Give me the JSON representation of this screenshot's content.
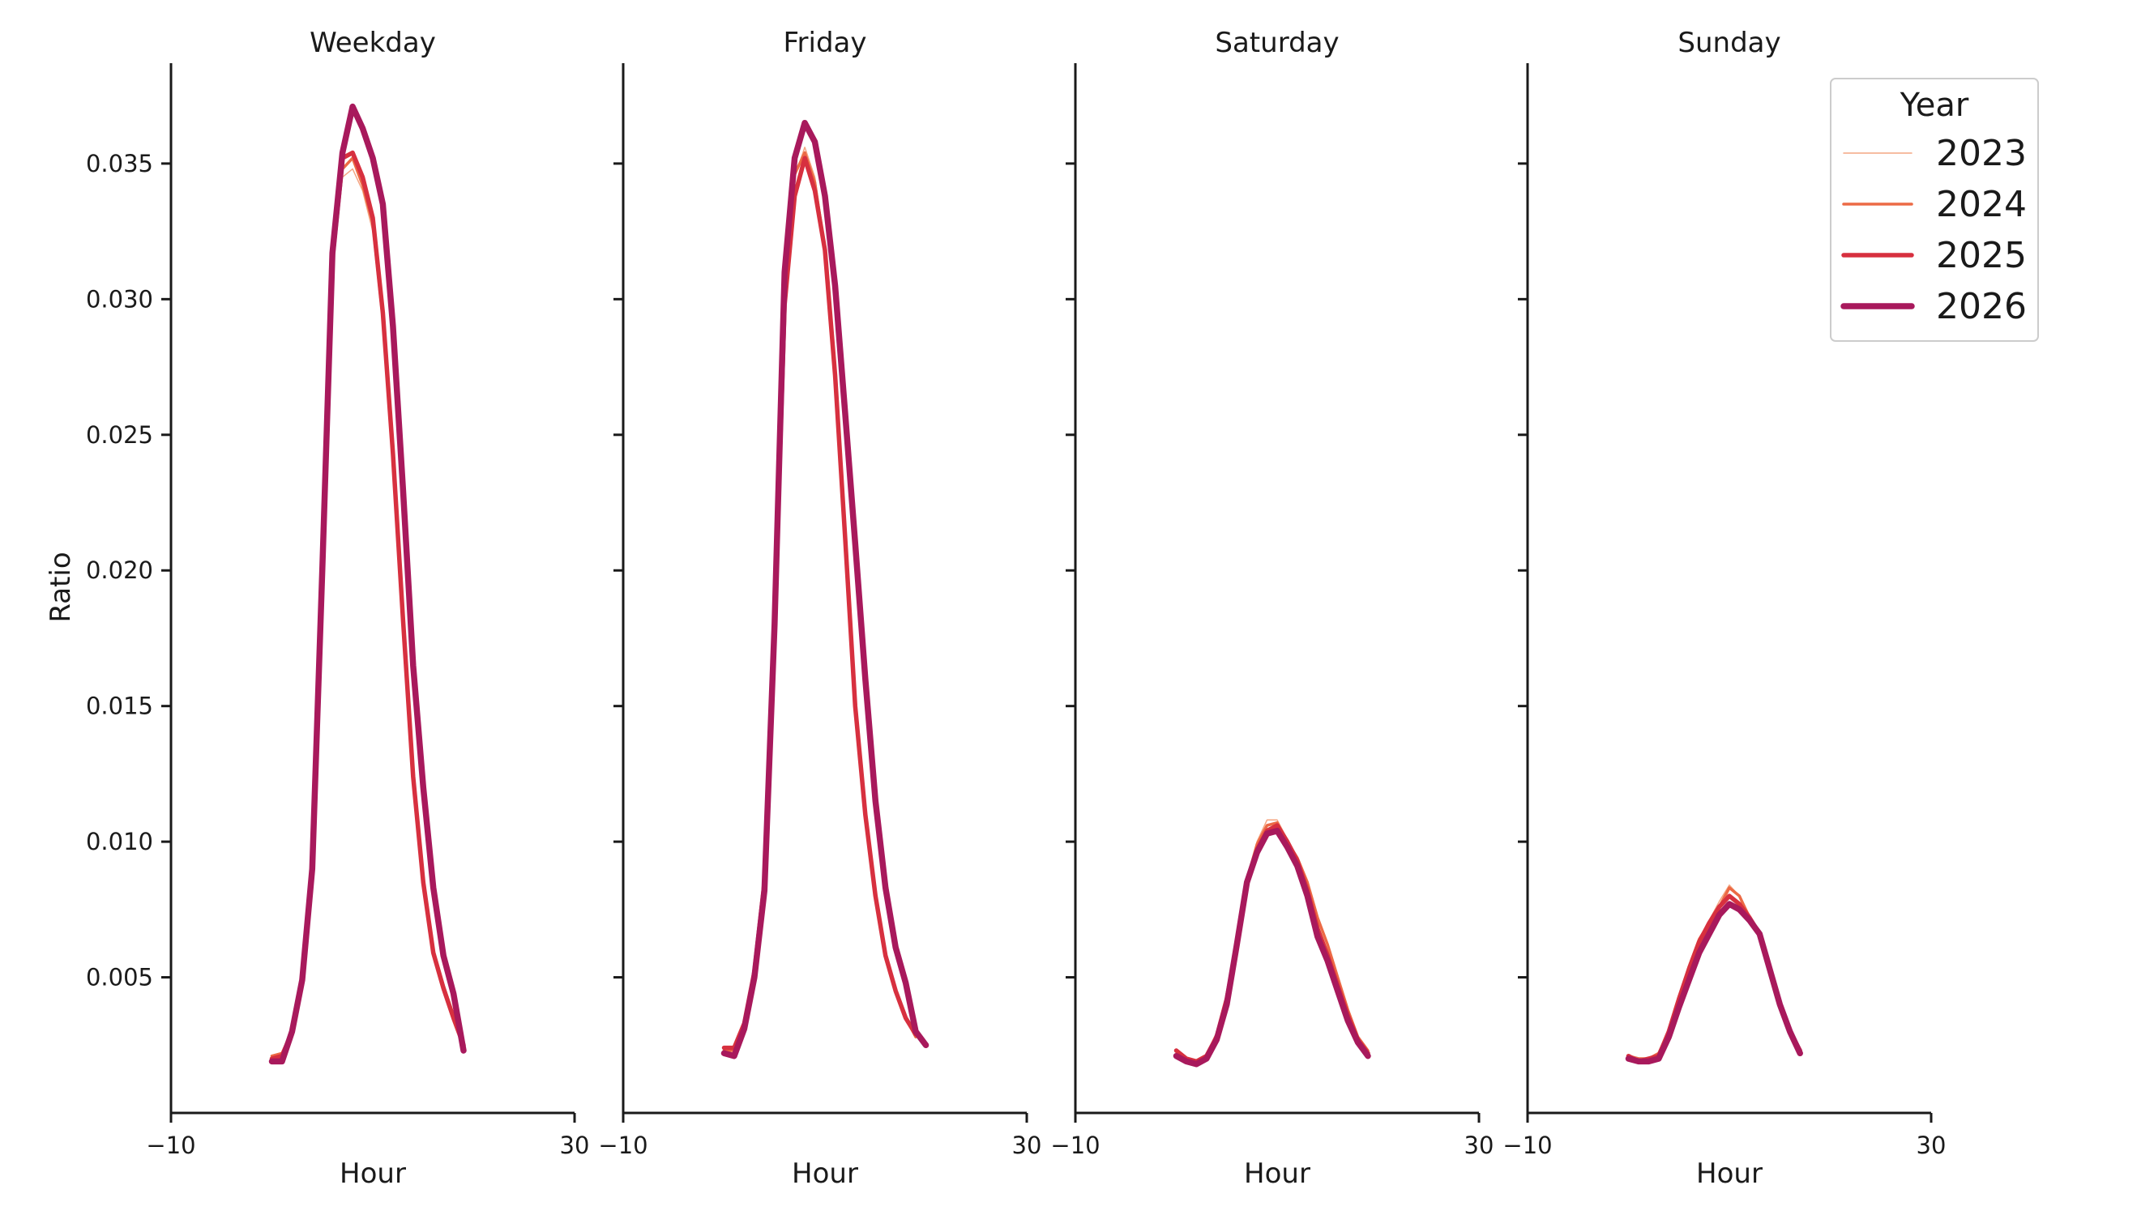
{
  "chart_data": {
    "type": "line",
    "ylabel": "Ratio",
    "xlabel": "Hour",
    "xlim": [
      -10,
      30
    ],
    "xticks": [
      -10,
      30
    ],
    "xtick_labels": [
      "−10",
      "30"
    ],
    "ylim": [
      0.0,
      0.0387
    ],
    "yticks": [
      0.005,
      0.01,
      0.015,
      0.02,
      0.025,
      0.03,
      0.035
    ],
    "ytick_labels": [
      "0.005",
      "0.010",
      "0.015",
      "0.020",
      "0.025",
      "0.030",
      "0.035"
    ],
    "grid": false,
    "legend": {
      "title": "Year",
      "position": "top-right",
      "entries": [
        "2023",
        "2024",
        "2025",
        "2026"
      ]
    },
    "x": [
      0,
      1,
      2,
      3,
      4,
      5,
      6,
      7,
      8,
      9,
      10,
      11,
      12,
      13,
      14,
      15,
      16,
      17,
      18,
      19,
      20,
      21,
      22,
      23
    ],
    "series_styles": [
      {
        "year": "2023",
        "color": "#f4a582",
        "width": 1.5
      },
      {
        "year": "2024",
        "color": "#ec6a45",
        "width": 3.5
      },
      {
        "year": "2025",
        "color": "#d7303f",
        "width": 5.5
      },
      {
        "year": "2026",
        "color": "#a8195c",
        "width": 7.5
      }
    ],
    "panels": [
      {
        "title": "Weekday",
        "series": [
          {
            "name": "2023",
            "values": [
              0.0021,
              0.0022,
              0.0029,
              0.005,
              0.009,
              0.0195,
              0.031,
              0.0345,
              0.0348,
              0.034,
              0.0325,
              0.029,
              0.024,
              0.018,
              0.0125,
              0.0085,
              0.006,
              0.0047,
              0.0036,
              0.0027
            ],
            "x0": 0
          },
          {
            "name": "2024",
            "values": [
              0.0021,
              0.0022,
              0.003,
              0.005,
              0.009,
              0.0198,
              0.0312,
              0.0348,
              0.0352,
              0.0342,
              0.0328,
              0.0293,
              0.0242,
              0.0181,
              0.0126,
              0.0086,
              0.006,
              0.0047,
              0.0036,
              0.0026
            ],
            "x0": 0
          },
          {
            "name": "2025",
            "values": [
              0.002,
              0.0021,
              0.003,
              0.005,
              0.0092,
              0.02,
              0.0315,
              0.0352,
              0.0354,
              0.0345,
              0.033,
              0.0295,
              0.0243,
              0.0182,
              0.0124,
              0.0085,
              0.0059,
              0.0046,
              0.0035,
              0.0025
            ],
            "x0": 0
          },
          {
            "name": "2026",
            "values": [
              0.0019,
              0.0019,
              0.003,
              0.0049,
              0.009,
              0.0201,
              0.0317,
              0.0354,
              0.0371,
              0.0363,
              0.0352,
              0.0335,
              0.029,
              0.023,
              0.0165,
              0.012,
              0.0083,
              0.0058,
              0.0044,
              0.0023
            ],
            "x0": 0
          }
        ]
      },
      {
        "title": "Friday",
        "series": [
          {
            "name": "2023",
            "values": [
              0.0023,
              0.0023,
              0.0032,
              0.0051,
              0.0085,
              0.018,
              0.0295,
              0.0345,
              0.0356,
              0.0345,
              0.032,
              0.0275,
              0.0215,
              0.015,
              0.011,
              0.008,
              0.0058,
              0.0045,
              0.0035,
              0.0028
            ],
            "x0": 0
          },
          {
            "name": "2024",
            "values": [
              0.0023,
              0.0023,
              0.0033,
              0.0052,
              0.0086,
              0.0182,
              0.0297,
              0.0346,
              0.0354,
              0.0343,
              0.0318,
              0.0273,
              0.0213,
              0.015,
              0.011,
              0.008,
              0.0058,
              0.0045,
              0.0035,
              0.0028
            ],
            "x0": 0
          },
          {
            "name": "2025",
            "values": [
              0.0024,
              0.0024,
              0.0033,
              0.0052,
              0.0085,
              0.018,
              0.0298,
              0.0338,
              0.0352,
              0.034,
              0.0318,
              0.0272,
              0.0212,
              0.015,
              0.011,
              0.008,
              0.0058,
              0.0045,
              0.0035,
              0.0029
            ],
            "x0": 0
          },
          {
            "name": "2026",
            "values": [
              0.0022,
              0.0021,
              0.0031,
              0.005,
              0.0082,
              0.018,
              0.031,
              0.0352,
              0.0365,
              0.0358,
              0.0338,
              0.0305,
              0.0258,
              0.021,
              0.016,
              0.0115,
              0.0083,
              0.0061,
              0.0048,
              0.003,
              0.0025
            ],
            "x0": 0
          }
        ]
      },
      {
        "title": "Saturday",
        "series": [
          {
            "name": "2023",
            "values": [
              0.0022,
              0.002,
              0.0019,
              0.0021,
              0.0028,
              0.0042,
              0.0063,
              0.0085,
              0.01,
              0.0108,
              0.0108,
              0.0101,
              0.0094,
              0.0085,
              0.0072,
              0.0062,
              0.005,
              0.0038,
              0.0028,
              0.0023
            ],
            "x0": 0
          },
          {
            "name": "2024",
            "values": [
              0.0023,
              0.002,
              0.0019,
              0.0021,
              0.0029,
              0.0043,
              0.0064,
              0.0086,
              0.0099,
              0.0106,
              0.0107,
              0.01,
              0.0094,
              0.0085,
              0.0072,
              0.0062,
              0.005,
              0.0038,
              0.0028,
              0.0023
            ],
            "x0": 0
          },
          {
            "name": "2025",
            "values": [
              0.0023,
              0.002,
              0.0019,
              0.0021,
              0.0028,
              0.0042,
              0.0062,
              0.0085,
              0.0097,
              0.0104,
              0.0106,
              0.01,
              0.0093,
              0.0082,
              0.0068,
              0.0058,
              0.0047,
              0.0036,
              0.0027,
              0.0022
            ],
            "x0": 0
          },
          {
            "name": "2026",
            "values": [
              0.0021,
              0.0019,
              0.0018,
              0.002,
              0.0027,
              0.004,
              0.0062,
              0.0085,
              0.0096,
              0.0103,
              0.0104,
              0.0098,
              0.0091,
              0.008,
              0.0065,
              0.0056,
              0.0045,
              0.0034,
              0.0026,
              0.0021
            ],
            "x0": 0
          }
        ]
      },
      {
        "title": "Sunday",
        "series": [
          {
            "name": "2023",
            "values": [
              0.0021,
              0.002,
              0.002,
              0.0022,
              0.003,
              0.0041,
              0.0053,
              0.0064,
              0.0071,
              0.0078,
              0.0084,
              0.008,
              0.0073,
              0.0066,
              0.0053,
              0.004,
              0.003,
              0.0023
            ],
            "x0": 0
          },
          {
            "name": "2024",
            "values": [
              0.0021,
              0.002,
              0.002,
              0.0022,
              0.003,
              0.0042,
              0.0054,
              0.0064,
              0.007,
              0.0076,
              0.0083,
              0.008,
              0.0072,
              0.0066,
              0.0053,
              0.004,
              0.003,
              0.0023
            ],
            "x0": 0
          },
          {
            "name": "2025",
            "values": [
              0.0021,
              0.0019,
              0.002,
              0.0021,
              0.003,
              0.0042,
              0.0053,
              0.0063,
              0.007,
              0.0076,
              0.008,
              0.0077,
              0.0072,
              0.0066,
              0.0053,
              0.004,
              0.003,
              0.0023
            ],
            "x0": 0
          },
          {
            "name": "2026",
            "values": [
              0.002,
              0.0019,
              0.0019,
              0.002,
              0.0028,
              0.0039,
              0.0049,
              0.0059,
              0.0066,
              0.0073,
              0.0077,
              0.0075,
              0.0071,
              0.0066,
              0.0053,
              0.004,
              0.003,
              0.0022
            ],
            "x0": 0
          }
        ]
      }
    ]
  }
}
